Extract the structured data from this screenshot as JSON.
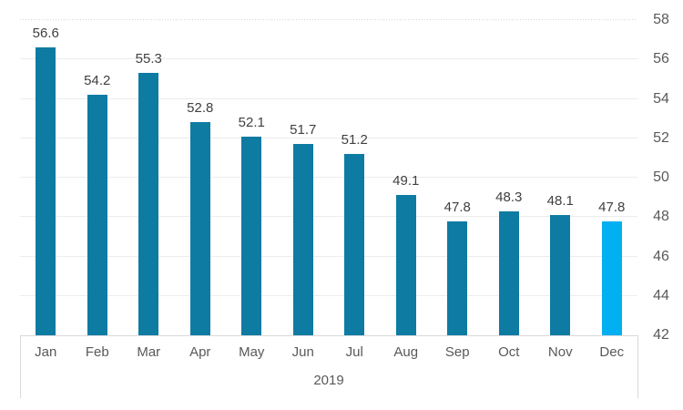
{
  "chart_data": {
    "type": "bar",
    "title": "",
    "categories": [
      "Jan",
      "Feb",
      "Mar",
      "Apr",
      "May",
      "Jun",
      "Jul",
      "Aug",
      "Sep",
      "Oct",
      "Nov",
      "Dec"
    ],
    "values": [
      56.6,
      54.2,
      55.3,
      52.8,
      52.1,
      51.7,
      51.2,
      49.1,
      47.8,
      48.3,
      48.1,
      47.8
    ],
    "value_labels": [
      "56.6",
      "54.2",
      "55.3",
      "52.8",
      "52.1",
      "51.7",
      "51.2",
      "49.1",
      "47.8",
      "48.3",
      "48.1",
      "47.8"
    ],
    "xlabel": "2019",
    "ylabel": "",
    "ylim": [
      42,
      58
    ],
    "yticks": [
      42,
      44,
      46,
      48,
      50,
      52,
      54,
      56,
      58
    ],
    "ytick_labels": [
      "42",
      "44",
      "46",
      "48",
      "50",
      "52",
      "54",
      "56",
      "58"
    ],
    "y_axis_side": "right",
    "grid": true,
    "legend": false,
    "highlight_index": 11,
    "colors": {
      "bar": "#0e7ba3",
      "highlight_bar": "#00b0f0",
      "data_label": "#404040",
      "axis_text": "#595959",
      "gridline": "#ececec",
      "axis_line": "#d9d9d9",
      "background": "#ffffff"
    }
  }
}
